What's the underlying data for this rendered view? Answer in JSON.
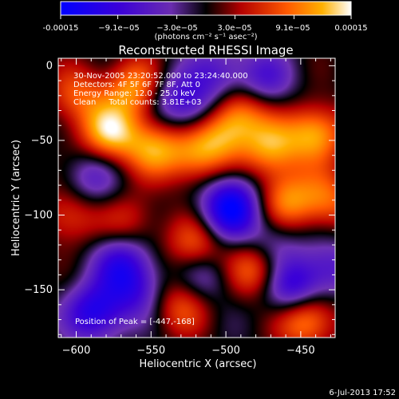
{
  "colorbar": {
    "tick_labels": [
      "-0.00015",
      "−9.1e−05",
      "−3.0e−05",
      "3.0e−05",
      "9.1e−05",
      "0.00015"
    ],
    "tick_values": [
      -0.00015,
      -9.1e-05,
      -3e-05,
      3e-05,
      9.1e-05,
      0.00015
    ],
    "range": [
      -0.00015,
      0.00015
    ],
    "unit_label": "(photons cm⁻² s⁻¹ asec⁻²)"
  },
  "chart_data": {
    "type": "heatmap",
    "title": "Reconstructed RHESSI Image",
    "xlabel": "Heliocentric X (arcsec)",
    "ylabel": "Heliocentric Y (arcsec)",
    "xlim": [
      -612,
      -427
    ],
    "ylim": [
      -182,
      5
    ],
    "x_ticks": [
      -600,
      -550,
      -500,
      -450
    ],
    "y_ticks": [
      0,
      -50,
      -100,
      -150
    ],
    "x_tick_labels": [
      "−600",
      "−550",
      "−500",
      "−450"
    ],
    "y_tick_labels": [
      "0",
      "−50",
      "−100",
      "−150"
    ],
    "peak": {
      "x": -447,
      "y": -168
    },
    "annotations": [
      "30-Nov-2005 23:20:52.000 to 23:24:40.000",
      "Detectors: 4F 5F 6F 7F 8F, Att 0",
      "Energy Range: 12.0 - 25.0 keV",
      "Clean     Total counts: 3.81E+03"
    ],
    "peak_label": "Position of Peak = [-447,-168]",
    "blobs": [
      {
        "x": -560,
        "y": -15,
        "v": 0.9
      },
      {
        "x": -578,
        "y": -45,
        "v": 1.0
      },
      {
        "x": -548,
        "y": -55,
        "v": 0.8
      },
      {
        "x": -520,
        "y": -60,
        "v": 0.7
      },
      {
        "x": -505,
        "y": -45,
        "v": 0.7
      },
      {
        "x": -490,
        "y": -30,
        "v": 0.75
      },
      {
        "x": -470,
        "y": -55,
        "v": 0.85
      },
      {
        "x": -440,
        "y": -45,
        "v": 0.9
      },
      {
        "x": -460,
        "y": -90,
        "v": 0.75
      },
      {
        "x": -432,
        "y": -90,
        "v": 0.65
      },
      {
        "x": -520,
        "y": -120,
        "v": 0.7
      },
      {
        "x": -480,
        "y": -135,
        "v": 0.8
      },
      {
        "x": -530,
        "y": -160,
        "v": 0.6
      },
      {
        "x": -447,
        "y": -168,
        "v": 1.0
      },
      {
        "x": -605,
        "y": -100,
        "v": 0.55
      },
      {
        "x": -600,
        "y": -20,
        "v": 0.6
      },
      {
        "x": -565,
        "y": -105,
        "v": 0.45
      },
      {
        "x": -540,
        "y": -20,
        "v": -0.5
      },
      {
        "x": -520,
        "y": -30,
        "v": -0.6
      },
      {
        "x": -505,
        "y": -5,
        "v": -0.5
      },
      {
        "x": -475,
        "y": -10,
        "v": -0.6
      },
      {
        "x": -495,
        "y": -90,
        "v": -0.7
      },
      {
        "x": -500,
        "y": -100,
        "v": -0.6
      },
      {
        "x": -590,
        "y": -75,
        "v": -0.5
      },
      {
        "x": -570,
        "y": -130,
        "v": -0.7
      },
      {
        "x": -588,
        "y": -165,
        "v": -0.9
      },
      {
        "x": -560,
        "y": -150,
        "v": -0.6
      },
      {
        "x": -515,
        "y": -140,
        "v": -0.5
      },
      {
        "x": -455,
        "y": -150,
        "v": -0.95
      },
      {
        "x": -470,
        "y": -120,
        "v": -0.5
      },
      {
        "x": -430,
        "y": -135,
        "v": -0.5
      }
    ]
  },
  "footer": {
    "timestamp": "6-Jul-2013 17:52"
  }
}
